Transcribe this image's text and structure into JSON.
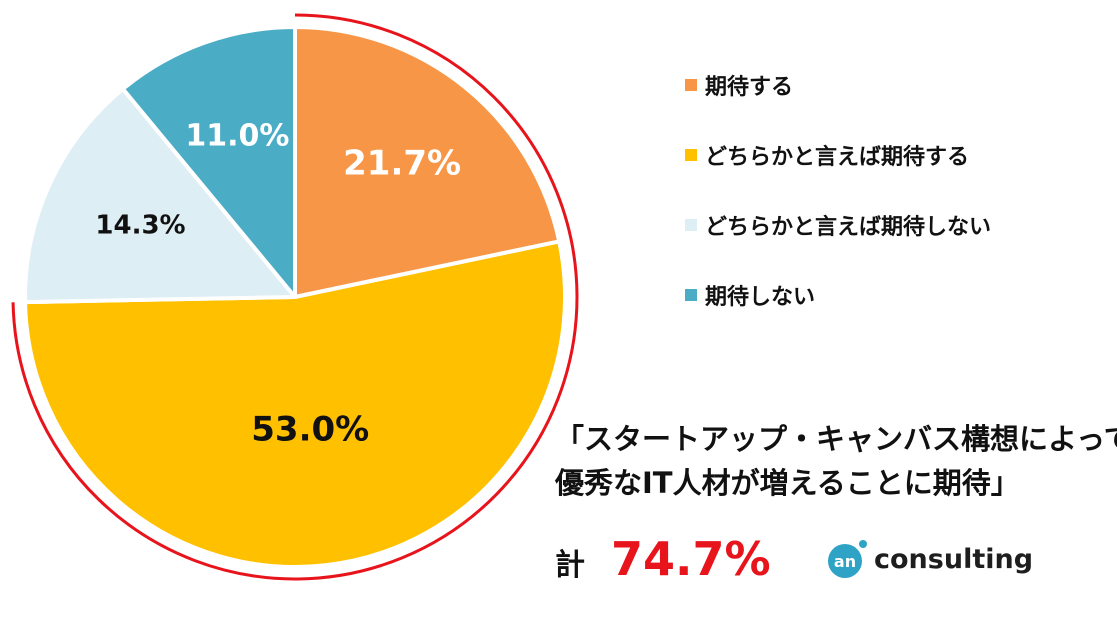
{
  "chart_data": {
    "type": "pie",
    "slices": [
      {
        "name": "期待する",
        "value": 21.7,
        "label": "21.7%",
        "color": "#F79646"
      },
      {
        "name": "どちらかと言えば期待する",
        "value": 53.0,
        "label": "53.0%",
        "color": "#FFC000"
      },
      {
        "name": "どちらかと言えば期待しない",
        "value": 14.3,
        "label": "14.3%",
        "color": "#DEEEF5"
      },
      {
        "name": "期待しない",
        "value": 11.0,
        "label": "11.0%",
        "color": "#4BACC6"
      }
    ],
    "legend_position": "right",
    "highlight_ring": {
      "covers": [
        "期待する",
        "どちらかと言えば期待する"
      ],
      "color": "#E8141C"
    }
  },
  "callout": {
    "line1": "「スタートアップ・キャンバス構想によって",
    "line2": "優秀なIT人材が増えることに期待」"
  },
  "total": {
    "label": "計",
    "value": "74.7%",
    "color": "#E8141C"
  },
  "logo": {
    "mark": "an",
    "text": "consulting",
    "mark_color": "#2EA3C5"
  }
}
